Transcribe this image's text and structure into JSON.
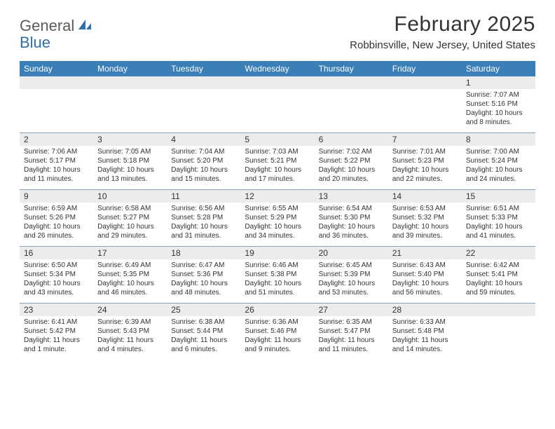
{
  "logo": {
    "text1": "General",
    "text2": "Blue"
  },
  "title": "February 2025",
  "location": "Robbinsville, New Jersey, United States",
  "colors": {
    "header_bg": "#3b7fb8",
    "header_text": "#ffffff",
    "stripe_bg": "#ececec",
    "rule": "#8aa2b5",
    "logo_gray": "#5a5a5a",
    "logo_blue": "#2f6fa7"
  },
  "day_headers": [
    "Sunday",
    "Monday",
    "Tuesday",
    "Wednesday",
    "Thursday",
    "Friday",
    "Saturday"
  ],
  "weeks": [
    [
      {
        "num": "",
        "sunrise": "",
        "sunset": "",
        "daylight": ""
      },
      {
        "num": "",
        "sunrise": "",
        "sunset": "",
        "daylight": ""
      },
      {
        "num": "",
        "sunrise": "",
        "sunset": "",
        "daylight": ""
      },
      {
        "num": "",
        "sunrise": "",
        "sunset": "",
        "daylight": ""
      },
      {
        "num": "",
        "sunrise": "",
        "sunset": "",
        "daylight": ""
      },
      {
        "num": "",
        "sunrise": "",
        "sunset": "",
        "daylight": ""
      },
      {
        "num": "1",
        "sunrise": "Sunrise: 7:07 AM",
        "sunset": "Sunset: 5:16 PM",
        "daylight": "Daylight: 10 hours and 8 minutes."
      }
    ],
    [
      {
        "num": "2",
        "sunrise": "Sunrise: 7:06 AM",
        "sunset": "Sunset: 5:17 PM",
        "daylight": "Daylight: 10 hours and 11 minutes."
      },
      {
        "num": "3",
        "sunrise": "Sunrise: 7:05 AM",
        "sunset": "Sunset: 5:18 PM",
        "daylight": "Daylight: 10 hours and 13 minutes."
      },
      {
        "num": "4",
        "sunrise": "Sunrise: 7:04 AM",
        "sunset": "Sunset: 5:20 PM",
        "daylight": "Daylight: 10 hours and 15 minutes."
      },
      {
        "num": "5",
        "sunrise": "Sunrise: 7:03 AM",
        "sunset": "Sunset: 5:21 PM",
        "daylight": "Daylight: 10 hours and 17 minutes."
      },
      {
        "num": "6",
        "sunrise": "Sunrise: 7:02 AM",
        "sunset": "Sunset: 5:22 PM",
        "daylight": "Daylight: 10 hours and 20 minutes."
      },
      {
        "num": "7",
        "sunrise": "Sunrise: 7:01 AM",
        "sunset": "Sunset: 5:23 PM",
        "daylight": "Daylight: 10 hours and 22 minutes."
      },
      {
        "num": "8",
        "sunrise": "Sunrise: 7:00 AM",
        "sunset": "Sunset: 5:24 PM",
        "daylight": "Daylight: 10 hours and 24 minutes."
      }
    ],
    [
      {
        "num": "9",
        "sunrise": "Sunrise: 6:59 AM",
        "sunset": "Sunset: 5:26 PM",
        "daylight": "Daylight: 10 hours and 26 minutes."
      },
      {
        "num": "10",
        "sunrise": "Sunrise: 6:58 AM",
        "sunset": "Sunset: 5:27 PM",
        "daylight": "Daylight: 10 hours and 29 minutes."
      },
      {
        "num": "11",
        "sunrise": "Sunrise: 6:56 AM",
        "sunset": "Sunset: 5:28 PM",
        "daylight": "Daylight: 10 hours and 31 minutes."
      },
      {
        "num": "12",
        "sunrise": "Sunrise: 6:55 AM",
        "sunset": "Sunset: 5:29 PM",
        "daylight": "Daylight: 10 hours and 34 minutes."
      },
      {
        "num": "13",
        "sunrise": "Sunrise: 6:54 AM",
        "sunset": "Sunset: 5:30 PM",
        "daylight": "Daylight: 10 hours and 36 minutes."
      },
      {
        "num": "14",
        "sunrise": "Sunrise: 6:53 AM",
        "sunset": "Sunset: 5:32 PM",
        "daylight": "Daylight: 10 hours and 39 minutes."
      },
      {
        "num": "15",
        "sunrise": "Sunrise: 6:51 AM",
        "sunset": "Sunset: 5:33 PM",
        "daylight": "Daylight: 10 hours and 41 minutes."
      }
    ],
    [
      {
        "num": "16",
        "sunrise": "Sunrise: 6:50 AM",
        "sunset": "Sunset: 5:34 PM",
        "daylight": "Daylight: 10 hours and 43 minutes."
      },
      {
        "num": "17",
        "sunrise": "Sunrise: 6:49 AM",
        "sunset": "Sunset: 5:35 PM",
        "daylight": "Daylight: 10 hours and 46 minutes."
      },
      {
        "num": "18",
        "sunrise": "Sunrise: 6:47 AM",
        "sunset": "Sunset: 5:36 PM",
        "daylight": "Daylight: 10 hours and 48 minutes."
      },
      {
        "num": "19",
        "sunrise": "Sunrise: 6:46 AM",
        "sunset": "Sunset: 5:38 PM",
        "daylight": "Daylight: 10 hours and 51 minutes."
      },
      {
        "num": "20",
        "sunrise": "Sunrise: 6:45 AM",
        "sunset": "Sunset: 5:39 PM",
        "daylight": "Daylight: 10 hours and 53 minutes."
      },
      {
        "num": "21",
        "sunrise": "Sunrise: 6:43 AM",
        "sunset": "Sunset: 5:40 PM",
        "daylight": "Daylight: 10 hours and 56 minutes."
      },
      {
        "num": "22",
        "sunrise": "Sunrise: 6:42 AM",
        "sunset": "Sunset: 5:41 PM",
        "daylight": "Daylight: 10 hours and 59 minutes."
      }
    ],
    [
      {
        "num": "23",
        "sunrise": "Sunrise: 6:41 AM",
        "sunset": "Sunset: 5:42 PM",
        "daylight": "Daylight: 11 hours and 1 minute."
      },
      {
        "num": "24",
        "sunrise": "Sunrise: 6:39 AM",
        "sunset": "Sunset: 5:43 PM",
        "daylight": "Daylight: 11 hours and 4 minutes."
      },
      {
        "num": "25",
        "sunrise": "Sunrise: 6:38 AM",
        "sunset": "Sunset: 5:44 PM",
        "daylight": "Daylight: 11 hours and 6 minutes."
      },
      {
        "num": "26",
        "sunrise": "Sunrise: 6:36 AM",
        "sunset": "Sunset: 5:46 PM",
        "daylight": "Daylight: 11 hours and 9 minutes."
      },
      {
        "num": "27",
        "sunrise": "Sunrise: 6:35 AM",
        "sunset": "Sunset: 5:47 PM",
        "daylight": "Daylight: 11 hours and 11 minutes."
      },
      {
        "num": "28",
        "sunrise": "Sunrise: 6:33 AM",
        "sunset": "Sunset: 5:48 PM",
        "daylight": "Daylight: 11 hours and 14 minutes."
      },
      {
        "num": "",
        "sunrise": "",
        "sunset": "",
        "daylight": ""
      }
    ]
  ]
}
